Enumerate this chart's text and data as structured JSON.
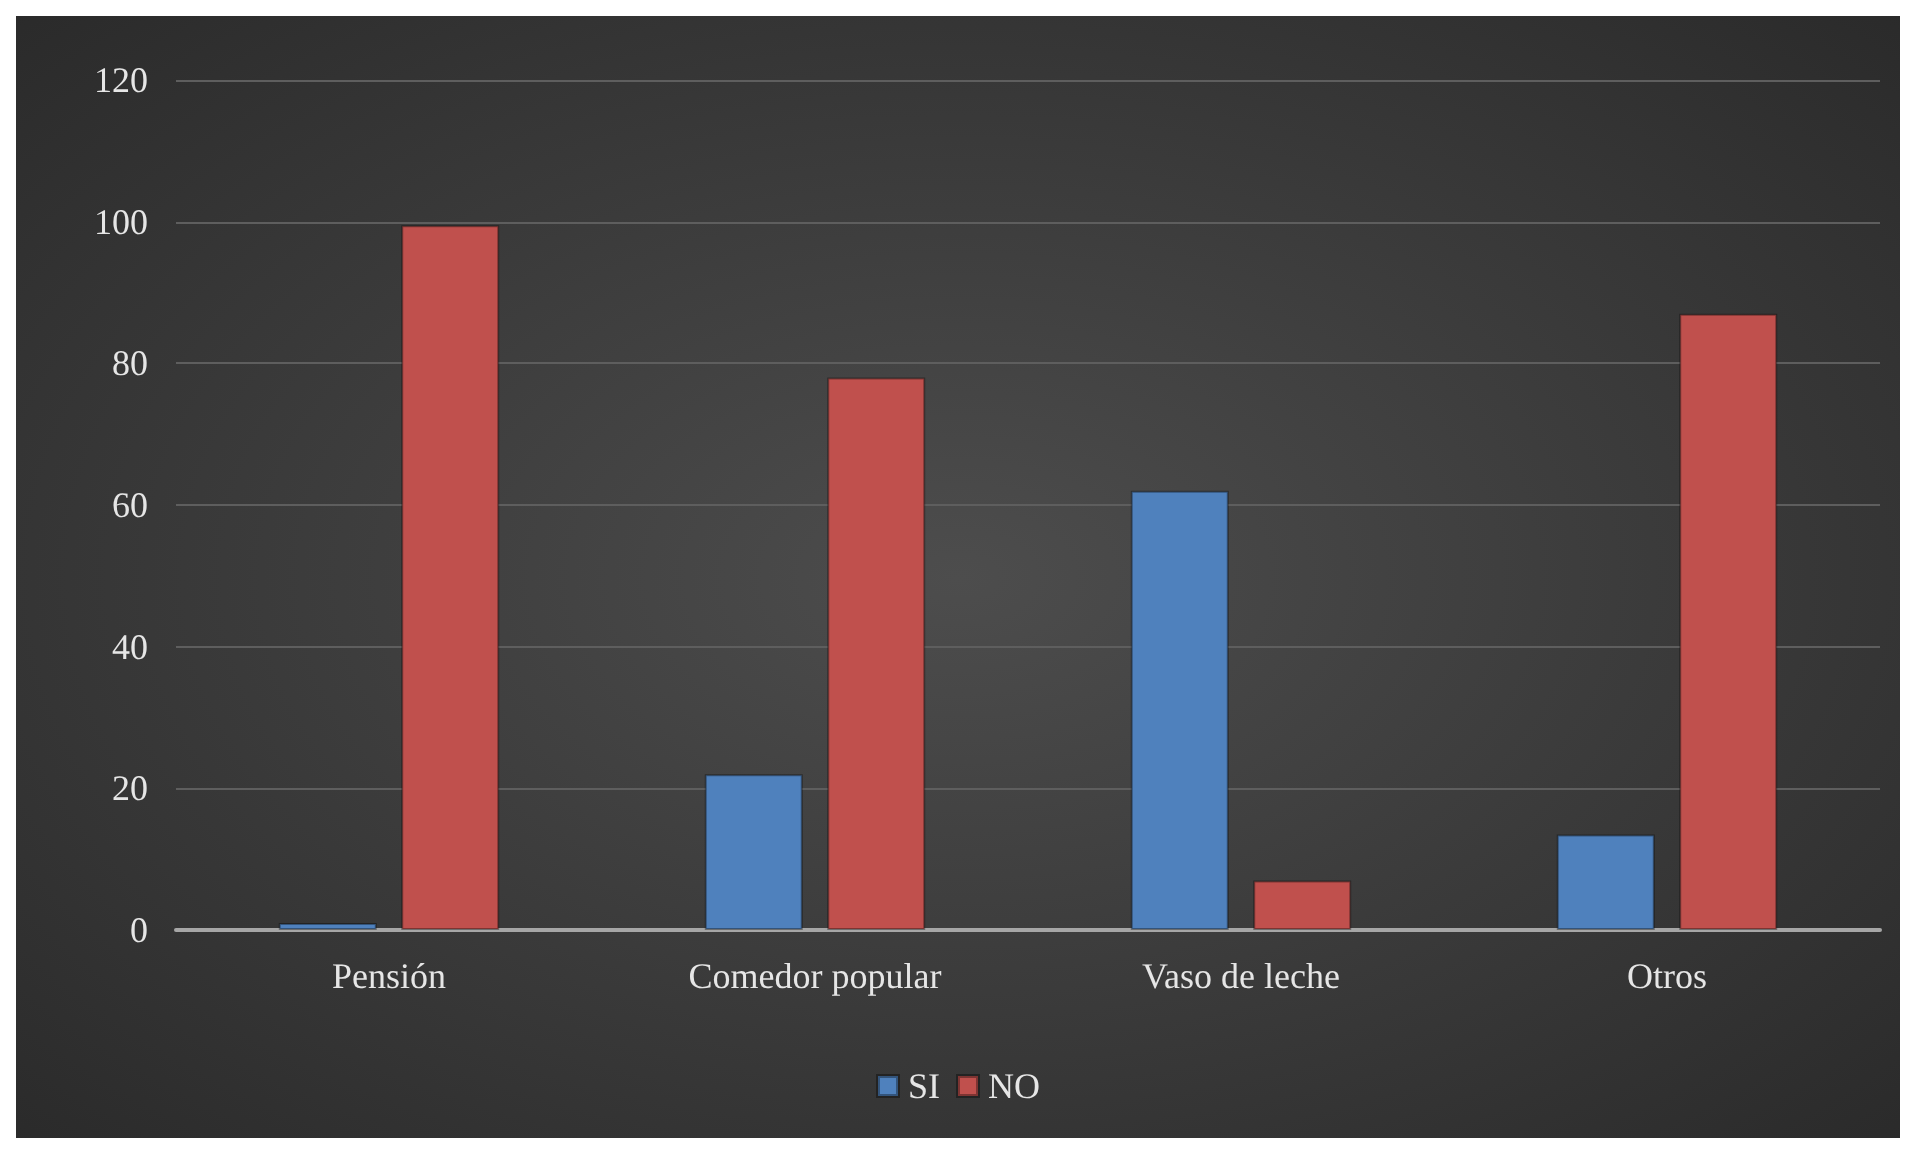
{
  "chart_data": {
    "type": "bar",
    "categories": [
      "Pensión",
      "Comedor popular",
      "Vaso de leche",
      "Otros"
    ],
    "series": [
      {
        "name": "SI",
        "color": "#4f81bd",
        "values": [
          1,
          22,
          62,
          13.5
        ]
      },
      {
        "name": "NO",
        "color": "#c0504d",
        "values": [
          99.5,
          78,
          7,
          87
        ]
      }
    ],
    "ylim": [
      0,
      120
    ],
    "yticks": [
      0,
      20,
      40,
      60,
      80,
      100,
      120
    ],
    "grid": "y",
    "legend": "bottom"
  }
}
